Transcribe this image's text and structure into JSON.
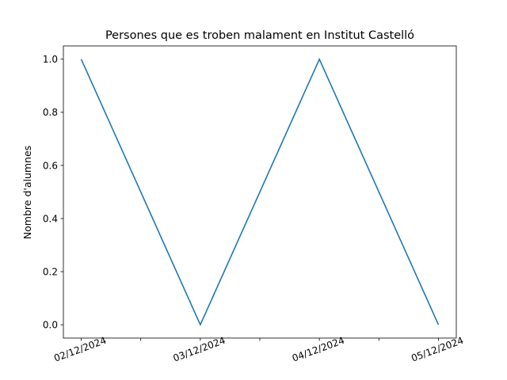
{
  "chart_data": {
    "type": "line",
    "title": "Persones que es troben malament en Institut Castelló",
    "xlabel": "",
    "ylabel": "Nombre d'alumnes",
    "x": [
      "02/12/2024",
      "03/12/2024",
      "04/12/2024",
      "05/12/2024"
    ],
    "series": [
      {
        "values": [
          1.0,
          0.0,
          1.0,
          0.0
        ],
        "color": "#1f77b4"
      }
    ],
    "ylim": [
      -0.05,
      1.05
    ],
    "yticks": [
      "0.0",
      "0.2",
      "0.4",
      "0.6",
      "0.8",
      "1.0"
    ],
    "grid": false,
    "legend": "none"
  }
}
